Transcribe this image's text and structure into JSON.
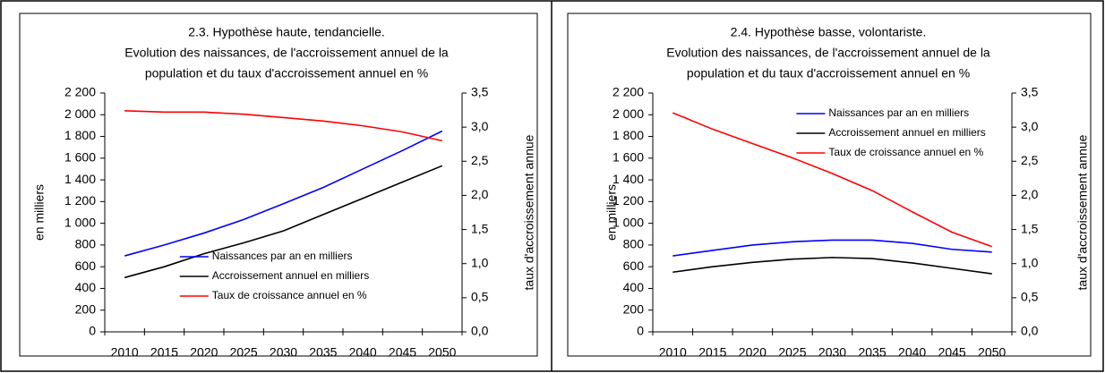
{
  "chart_data": [
    {
      "type": "line",
      "title": [
        "2.3. Hypothèse haute, tendancielle.",
        "Evolution des naissances, de l'accroissement annuel de la",
        "population et du taux d'accroissement annuel en %"
      ],
      "ylabel": "en milliers",
      "y2label": "taux d'accroissement annue",
      "categories": [
        "2010",
        "2015",
        "2020",
        "2025",
        "2030",
        "2035",
        "2040",
        "2045",
        "2050"
      ],
      "series": [
        {
          "name": "Naissances par an en milliers",
          "color": "#0000ff",
          "values": [
            700,
            800,
            910,
            1035,
            1180,
            1330,
            1500,
            1670,
            1850
          ]
        },
        {
          "name": "Accroissement annuel en milliers",
          "color": "#000000",
          "values": [
            500,
            600,
            720,
            820,
            930,
            1080,
            1230,
            1380,
            1530
          ]
        },
        {
          "name": "Taux de croissance annuel en %",
          "color": "#ff0000",
          "axis": "y2",
          "values": [
            3.24,
            3.22,
            3.22,
            3.19,
            3.14,
            3.09,
            3.02,
            2.93,
            2.8
          ]
        }
      ],
      "ylim": [
        0,
        2200
      ],
      "yticks": [
        0,
        200,
        400,
        600,
        800,
        {
          "value": 1000,
          "label": "1 000"
        },
        {
          "value": 1200,
          "label": "1 200"
        },
        {
          "value": 1400,
          "label": "1 400"
        },
        {
          "value": 1600,
          "label": "1 600"
        },
        {
          "value": 1800,
          "label": "1 800"
        },
        {
          "value": 2000,
          "label": "2 000"
        },
        {
          "value": 2200,
          "label": "2 200"
        }
      ],
      "y2lim": [
        0,
        3.5
      ],
      "y2ticks": [
        {
          "value": 0,
          "label": "0,0"
        },
        {
          "value": 0.5,
          "label": "0,5"
        },
        {
          "value": 1,
          "label": "1,0"
        },
        {
          "value": 1.5,
          "label": "1,5"
        },
        {
          "value": 2,
          "label": "2,0"
        },
        {
          "value": 2.5,
          "label": "2,5"
        },
        {
          "value": 3,
          "label": "3,0"
        },
        {
          "value": 3.5,
          "label": "3,5"
        }
      ],
      "legend": "lower center"
    },
    {
      "type": "line",
      "title": [
        "2.4. Hypothèse basse, volontariste.",
        "Evolution des naissances, de l'accroissement annuel de la",
        "population et du taux d'accroissement annuel en %"
      ],
      "ylabel": "en milliers",
      "y2label": "taux d'accroissement annue",
      "categories": [
        "2010",
        "2015",
        "2020",
        "2025",
        "2030",
        "2035",
        "2040",
        "2045",
        "2050"
      ],
      "series": [
        {
          "name": "Naissances par an en milliers",
          "color": "#0000ff",
          "values": [
            700,
            750,
            800,
            830,
            845,
            845,
            815,
            760,
            735
          ]
        },
        {
          "name": "Accroissement annuel en milliers",
          "color": "#000000",
          "values": [
            550,
            600,
            640,
            670,
            685,
            675,
            635,
            585,
            535
          ]
        },
        {
          "name": "Taux de croissance annuel en %",
          "color": "#ff0000",
          "axis": "y2",
          "values": [
            3.21,
            2.97,
            2.76,
            2.55,
            2.32,
            2.07,
            1.76,
            1.46,
            1.25
          ]
        }
      ],
      "ylim": [
        0,
        2200
      ],
      "yticks": [
        0,
        200,
        400,
        600,
        800,
        {
          "value": 1000,
          "label": "1 000"
        },
        {
          "value": 1200,
          "label": "1 200"
        },
        {
          "value": 1400,
          "label": "1 400"
        },
        {
          "value": 1600,
          "label": "1 600"
        },
        {
          "value": 1800,
          "label": "1 800"
        },
        {
          "value": 2000,
          "label": "2 000"
        },
        {
          "value": 2200,
          "label": "2 200"
        }
      ],
      "y2lim": [
        0,
        3.5
      ],
      "y2ticks": [
        {
          "value": 0,
          "label": "0,0"
        },
        {
          "value": 0.5,
          "label": "0,5"
        },
        {
          "value": 1,
          "label": "1,0"
        },
        {
          "value": 1.5,
          "label": "1,5"
        },
        {
          "value": 2,
          "label": "2,0"
        },
        {
          "value": 2.5,
          "label": "2,5"
        },
        {
          "value": 3,
          "label": "3,0"
        },
        {
          "value": 3.5,
          "label": "3,5"
        }
      ],
      "legend": "upper center"
    }
  ]
}
